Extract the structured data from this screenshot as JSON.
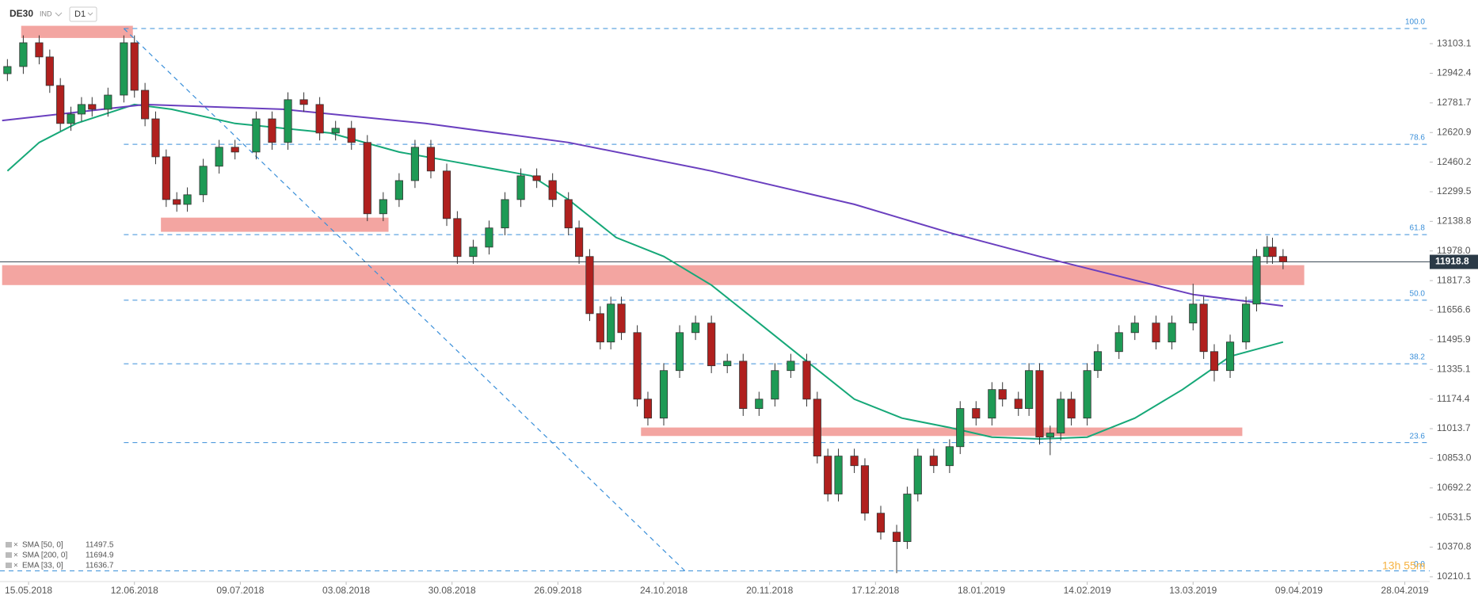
{
  "header": {
    "symbol": "DE30",
    "market": "IND",
    "interval": "D1"
  },
  "chart_data": {
    "type": "candlestick",
    "xlim": [
      -5.4,
      264.7
    ],
    "ylim": [
      10184,
      13340
    ],
    "xticks": [
      {
        "value": 0,
        "label": "15.05.2018"
      },
      {
        "value": 20,
        "label": "12.06.2018"
      },
      {
        "value": 40,
        "label": "09.07.2018"
      },
      {
        "value": 60,
        "label": "03.08.2018"
      },
      {
        "value": 80,
        "label": "30.08.2018"
      },
      {
        "value": 100,
        "label": "26.09.2018"
      },
      {
        "value": 120,
        "label": "24.10.2018"
      },
      {
        "value": 140,
        "label": "20.11.2018"
      },
      {
        "value": 160,
        "label": "17.12.2018"
      },
      {
        "value": 180,
        "label": "18.01.2019"
      },
      {
        "value": 200,
        "label": "14.02.2019"
      },
      {
        "value": 220,
        "label": "13.03.2019"
      },
      {
        "value": 240,
        "label": "09.04.2019"
      },
      {
        "value": 260,
        "label": "28.04.2019"
      }
    ],
    "yticks": [
      13103.1,
      12942.4,
      12781.7,
      12620.9,
      12460.2,
      12299.5,
      12138.8,
      {
        "value": 11978,
        "label": "11978.0"
      },
      11817.3,
      11656.6,
      11495.9,
      11335.1,
      11174.4,
      11013.7,
      {
        "value": 10853,
        "label": "10853.0"
      },
      10692.2,
      10531.5,
      10370.8,
      10210.1
    ],
    "up_color": "#1e9a55",
    "down_color": "#b0201e",
    "candles": {
      "x": [
        -4,
        -1,
        2,
        4,
        6,
        8,
        10,
        12,
        15,
        18,
        20,
        22,
        24,
        26,
        28,
        30,
        33,
        36,
        39,
        43,
        46,
        49,
        52,
        55,
        58,
        61,
        64,
        67,
        70,
        73,
        76,
        79,
        81,
        84,
        87,
        90,
        93,
        96,
        99,
        102,
        104,
        106,
        108,
        110,
        112,
        115,
        117,
        120,
        123,
        126,
        129,
        132,
        135,
        138,
        141,
        144,
        147,
        149,
        151,
        153,
        156,
        158,
        161,
        164,
        166,
        168,
        171,
        174,
        176,
        179,
        182,
        184,
        187,
        189,
        191,
        193,
        195,
        197,
        200,
        202,
        206,
        209,
        213,
        216,
        220,
        222,
        224,
        227,
        230,
        232,
        234,
        235,
        237
      ],
      "open": [
        12940,
        12979,
        13108,
        13031,
        12876,
        12670,
        12721,
        12773,
        12747,
        12824,
        13108,
        12850,
        12695,
        12489,
        12257,
        12231,
        12283,
        12438,
        12541,
        12515,
        12695,
        12567,
        12799,
        12773,
        12618,
        12644,
        12567,
        12180,
        12257,
        12360,
        12541,
        12412,
        12154,
        11948,
        11999,
        12103,
        12257,
        12386,
        12360,
        12257,
        12103,
        11948,
        11638,
        11484,
        11690,
        11535,
        11174,
        11071,
        11329,
        11535,
        11587,
        11355,
        11380,
        11123,
        11174,
        11329,
        11380,
        11174,
        10865,
        10659,
        10865,
        10813,
        10555,
        10452,
        10401,
        10659,
        10865,
        10813,
        10916,
        11123,
        11071,
        11226,
        11174,
        11123,
        11329,
        10968,
        10990,
        11174,
        11071,
        11329,
        11432,
        11535,
        11587,
        11484,
        11587,
        11690,
        11432,
        11329,
        11484,
        11690,
        11948,
        11999,
        11948
      ],
      "high": [
        13019,
        13148,
        13148,
        13071,
        12916,
        12761,
        12813,
        12813,
        12864,
        13148,
        13148,
        12890,
        12735,
        12529,
        12297,
        12323,
        12478,
        12581,
        12581,
        12735,
        12735,
        12839,
        12839,
        12813,
        12684,
        12684,
        12607,
        12297,
        12400,
        12581,
        12581,
        12452,
        12194,
        12039,
        12143,
        12297,
        12426,
        12426,
        12400,
        12297,
        12143,
        11988,
        11678,
        11730,
        11730,
        11575,
        11214,
        11369,
        11575,
        11627,
        11627,
        11420,
        11420,
        11214,
        11369,
        11420,
        11420,
        11214,
        10905,
        10905,
        10905,
        10853,
        10595,
        10492,
        10699,
        10905,
        10905,
        10956,
        11163,
        11163,
        11266,
        11266,
        11214,
        11369,
        11369,
        11030,
        11214,
        11214,
        11369,
        11472,
        11575,
        11627,
        11627,
        11627,
        11800,
        11730,
        11472,
        11524,
        11730,
        11988,
        12060,
        12050,
        11988
      ],
      "low": [
        12900,
        12939,
        12991,
        12836,
        12630,
        12630,
        12681,
        12707,
        12707,
        12784,
        12810,
        12655,
        12449,
        12217,
        12191,
        12191,
        12243,
        12398,
        12475,
        12475,
        12527,
        12527,
        12733,
        12578,
        12578,
        12527,
        12140,
        12140,
        12217,
        12320,
        12372,
        12114,
        11908,
        11908,
        11959,
        12063,
        12217,
        12320,
        12217,
        12063,
        11908,
        11598,
        11444,
        11444,
        11495,
        11134,
        11031,
        11031,
        11289,
        11495,
        11315,
        11315,
        11083,
        11083,
        11134,
        11289,
        11134,
        10825,
        10619,
        10619,
        10773,
        10515,
        10412,
        10230,
        10361,
        10619,
        10773,
        10773,
        10876,
        11031,
        11031,
        11134,
        11083,
        11083,
        10928,
        10870,
        10950,
        11031,
        11031,
        11289,
        11392,
        11495,
        11444,
        11444,
        11547,
        11392,
        11270,
        11289,
        11444,
        11650,
        11908,
        11908,
        11879
      ],
      "close": [
        12979,
        13108,
        13031,
        12876,
        12670,
        12721,
        12773,
        12747,
        12824,
        13108,
        12850,
        12695,
        12489,
        12257,
        12231,
        12283,
        12438,
        12541,
        12515,
        12695,
        12567,
        12799,
        12773,
        12618,
        12644,
        12567,
        12180,
        12257,
        12360,
        12541,
        12412,
        12154,
        11948,
        11999,
        12103,
        12257,
        12386,
        12360,
        12257,
        12103,
        11948,
        11638,
        11484,
        11690,
        11535,
        11174,
        11071,
        11329,
        11535,
        11587,
        11355,
        11380,
        11123,
        11174,
        11329,
        11380,
        11174,
        10865,
        10659,
        10865,
        10813,
        10555,
        10452,
        10401,
        10659,
        10865,
        10813,
        10916,
        11123,
        11071,
        11226,
        11174,
        11123,
        11329,
        10968,
        10990,
        11174,
        11071,
        11329,
        11432,
        11535,
        11587,
        11484,
        11587,
        11690,
        11432,
        11329,
        11484,
        11690,
        11948,
        11999,
        11948,
        11919
      ]
    },
    "series": [
      {
        "name": "SMA [50, 0]",
        "last": 11497.5,
        "color": "#16a878",
        "x": [
          -4,
          2,
          9,
          20,
          27,
          39,
          57,
          70,
          80,
          95,
          102,
          111,
          120,
          129,
          138,
          147,
          156,
          165,
          174,
          182,
          191,
          200,
          209,
          218,
          227,
          237
        ],
        "values": [
          12412,
          12567,
          12670,
          12773,
          12747,
          12670,
          12618,
          12515,
          12464,
          12386,
          12257,
          12051,
          11948,
          11793,
          11587,
          11380,
          11174,
          11071,
          11020,
          10968,
          10958,
          10968,
          11071,
          11226,
          11406,
          11484
        ]
      },
      {
        "name": "SMA [200, 0]",
        "last": 11694.9,
        "color": "#6a3fbf",
        "x": [
          -5,
          22,
          48,
          75,
          102,
          129,
          156,
          174,
          191,
          209,
          220,
          237
        ],
        "values": [
          12686,
          12773,
          12747,
          12670,
          12567,
          12412,
          12231,
          12077,
          11948,
          11819,
          11742,
          11680
        ]
      },
      {
        "name": "EMA [33, 0]",
        "last": 11636.7,
        "color": "#888888",
        "x": [],
        "values": []
      }
    ],
    "current_price": 11918.8,
    "fib_levels": [
      {
        "label": "100.0",
        "value": 13185
      },
      {
        "label": "78.6",
        "value": 12557
      },
      {
        "label": "61.8",
        "value": 12067
      },
      {
        "label": "50.0",
        "value": 11711
      },
      {
        "label": "38.2",
        "value": 11366
      },
      {
        "label": "23.6",
        "value": 10938
      },
      {
        "label": "0.0",
        "value": 10242
      }
    ],
    "fib_color": "#3a8fd9",
    "trendline": {
      "x": [
        18,
        124
      ],
      "y": [
        13185,
        10242
      ]
    },
    "zones": [
      {
        "x": [
          -1.4,
          19.7
        ],
        "y": [
          13134,
          13200
        ]
      },
      {
        "x": [
          25,
          68
        ],
        "y": [
          12082,
          12159
        ]
      },
      {
        "x": [
          -5,
          241
        ],
        "y": [
          11793,
          11901
        ]
      },
      {
        "x": [
          115.7,
          229.3
        ],
        "y": [
          10974,
          11020
        ]
      }
    ],
    "zone_color": "#f29b97",
    "timer": "13h 55m"
  }
}
